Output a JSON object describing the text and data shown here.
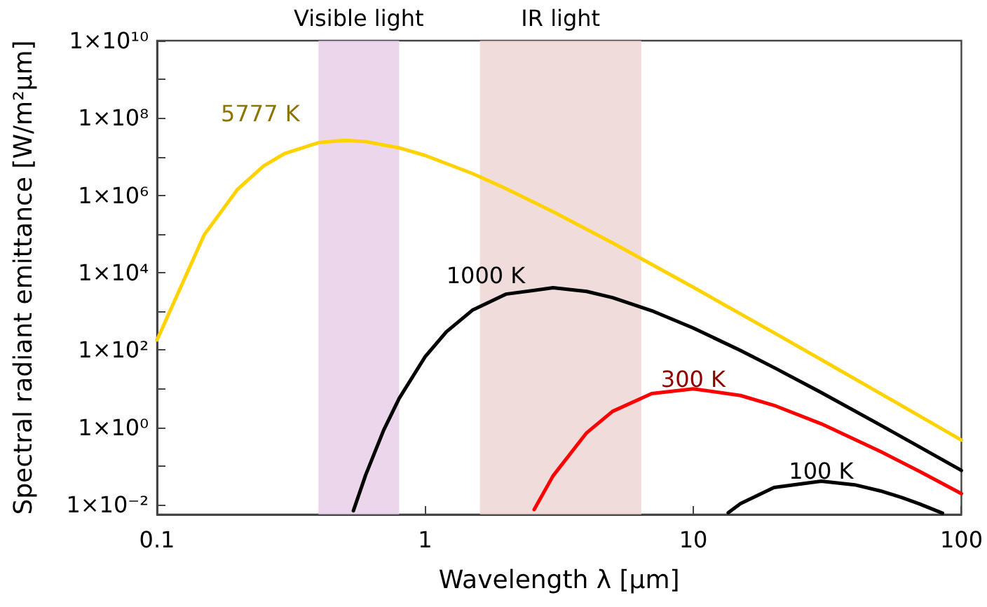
{
  "chart_data": {
    "type": "line",
    "xlabel": "Wavelength λ [μm]",
    "ylabel": "Spectral radiant emittance [W/m²μm]",
    "log": "xy",
    "xlim": [
      0.1,
      100
    ],
    "xticks": [
      0.1,
      1,
      10,
      100
    ],
    "ylim": [
      0.0056,
      10000000000.0
    ],
    "yticks": [
      {
        "value": 0.01,
        "label": "1×10⁻²"
      },
      {
        "value": 0.1,
        "label": null
      },
      {
        "value": 1,
        "label": "1×10⁰"
      },
      {
        "value": 10,
        "label": null
      },
      {
        "value": 100,
        "label": "1×10²"
      },
      {
        "value": 1000,
        "label": null
      },
      {
        "value": 10000,
        "label": "1×10⁴"
      },
      {
        "value": 100000,
        "label": null
      },
      {
        "value": 1000000,
        "label": "1×10⁶"
      },
      {
        "value": 10000000,
        "label": null
      },
      {
        "value": 100000000,
        "label": "1×10⁸"
      },
      {
        "value": 1000000000,
        "label": null
      },
      {
        "value": 10000000000,
        "label": "1×10¹⁰"
      }
    ],
    "grid": false,
    "legend": false,
    "marker": "none",
    "line_style": "solid",
    "bands": [
      {
        "axis": "x",
        "from": 0.4,
        "to": 0.8,
        "label": "Visible light",
        "color": "#e6c8e6"
      },
      {
        "axis": "x",
        "from": 1.6,
        "to": 6.4,
        "label": "IR light",
        "color": "#ecd0d0"
      }
    ],
    "series": [
      {
        "name": "5777 K",
        "color": "#ffd200",
        "x": [
          0.1,
          0.15,
          0.2,
          0.25,
          0.3,
          0.4,
          0.5,
          0.6,
          0.8,
          1,
          1.5,
          2,
          3,
          5,
          10,
          20,
          30,
          50,
          100
        ],
        "values": [
          182,
          96000,
          1450000,
          5770000,
          12200000,
          23000000,
          26400000,
          24500000,
          16900000,
          10760000,
          3680000,
          1500000,
          379000,
          59000,
          4210,
          281,
          56.6,
          7.46,
          0.47
        ]
      },
      {
        "name": "1000 K",
        "color": "#000000",
        "x": [
          0.54,
          0.6,
          0.7,
          0.8,
          1,
          1.2,
          1.5,
          2,
          3,
          4,
          5,
          7,
          10,
          15,
          20,
          30,
          50,
          70,
          100
        ],
        "values": [
          0.007,
          0.059,
          0.84,
          5.62,
          67.1,
          297,
          1070,
          2790,
          4080,
          3280,
          2270,
          1040,
          370,
          97.4,
          35.3,
          7.96,
          1.14,
          0.31,
          0.077
        ]
      },
      {
        "name": "300 K",
        "color": "#ff0000",
        "x": [
          2.55,
          3,
          4,
          5,
          7,
          10,
          15,
          20,
          30,
          50,
          70,
          100
        ],
        "values": [
          0.0075,
          0.0559,
          0.722,
          2.6,
          7.51,
          9.93,
          6.68,
          3.72,
          1.24,
          0.237,
          0.072,
          0.0194
        ]
      },
      {
        "name": "100 K",
        "color": "#000000",
        "x": [
          13.5,
          15,
          20,
          30,
          40,
          50,
          60,
          70,
          85
        ],
        "values": [
          0.00624,
          0.0107,
          0.0279,
          0.0408,
          0.0328,
          0.0227,
          0.0153,
          0.0104,
          0.00604
        ]
      }
    ]
  }
}
